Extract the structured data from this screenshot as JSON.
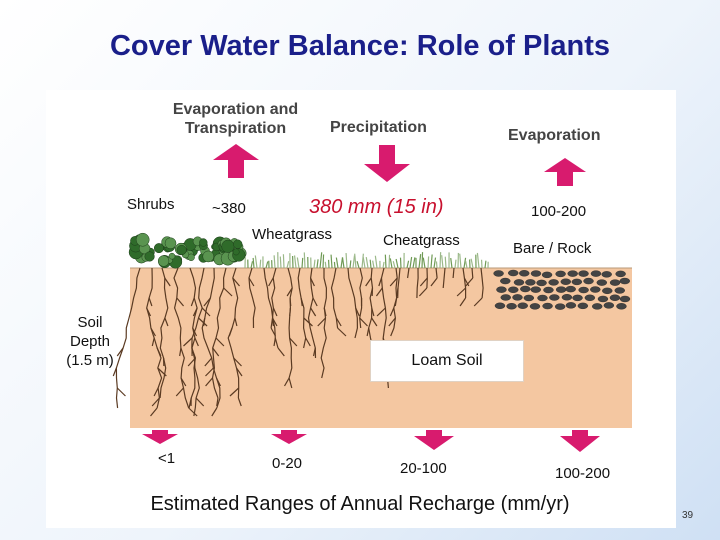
{
  "title": "Cover Water Balance:  Role of Plants",
  "headers": {
    "et": [
      "Evaporation and",
      "Transpiration"
    ],
    "precip": "Precipitation",
    "evap": "Evaporation"
  },
  "top_values": {
    "shrubs_et": "~380",
    "precip": "380 mm (15 in)",
    "bare_evap": "100-200"
  },
  "plants": {
    "shrubs": "Shrubs",
    "wheatgrass": "Wheatgrass",
    "cheatgrass": "Cheatgrass",
    "bare": "Bare / Rock"
  },
  "soil": {
    "depth_label": [
      "Soil",
      "Depth",
      "(1.5 m)"
    ],
    "type": "Loam Soil"
  },
  "recharge": {
    "shrubs": "<1",
    "wheatgrass": "0-20",
    "cheatgrass": "20-100",
    "bare": "100-200",
    "caption": "Estimated Ranges of Annual Recharge (mm/yr)"
  },
  "page_number": "39",
  "colors": {
    "title": "#1a1f8a",
    "arrow": "#d81b6e",
    "soil": "#f4c7a1",
    "precip_text": "#c8102e"
  }
}
